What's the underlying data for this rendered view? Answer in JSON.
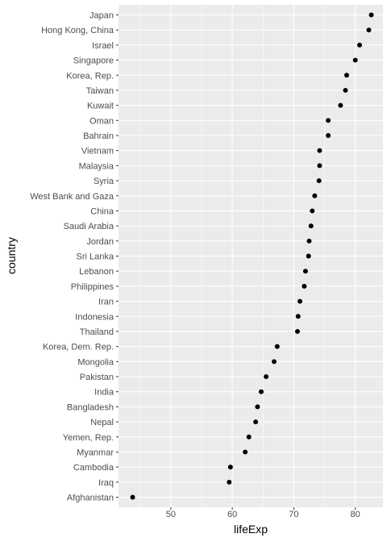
{
  "chart_data": {
    "type": "scatter",
    "xlabel": "lifeExp",
    "ylabel": "country",
    "xlim": [
      41.5,
      84.5
    ],
    "xticks": [
      50,
      60,
      70,
      80
    ],
    "grid": true,
    "categories": [
      "Japan",
      "Hong Kong, China",
      "Israel",
      "Singapore",
      "Korea, Rep.",
      "Taiwan",
      "Kuwait",
      "Oman",
      "Bahrain",
      "Vietnam",
      "Malaysia",
      "Syria",
      "West Bank and Gaza",
      "China",
      "Saudi Arabia",
      "Jordan",
      "Sri Lanka",
      "Lebanon",
      "Philippines",
      "Iran",
      "Indonesia",
      "Thailand",
      "Korea, Dem. Rep.",
      "Mongolia",
      "Pakistan",
      "India",
      "Bangladesh",
      "Nepal",
      "Yemen, Rep.",
      "Myanmar",
      "Cambodia",
      "Iraq",
      "Afghanistan"
    ],
    "values": [
      82.6,
      82.2,
      80.7,
      80.0,
      78.6,
      78.4,
      77.6,
      75.6,
      75.6,
      74.2,
      74.2,
      74.1,
      73.4,
      73.0,
      72.8,
      72.5,
      72.4,
      71.9,
      71.7,
      71.0,
      70.7,
      70.6,
      67.3,
      66.8,
      65.5,
      64.7,
      64.1,
      63.8,
      62.7,
      62.1,
      59.7,
      59.5,
      43.8
    ]
  }
}
